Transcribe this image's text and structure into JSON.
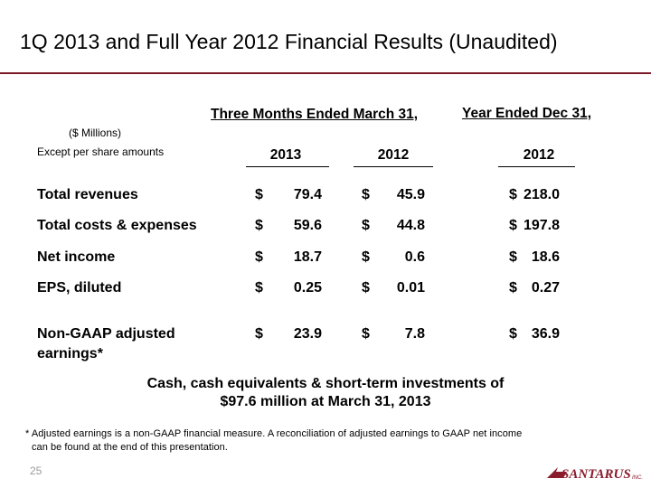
{
  "title": "1Q 2013 and Full Year 2012 Financial Results (Unaudited)",
  "header": {
    "three_months": "Three Months Ended March 31,",
    "year_ended": "Year Ended Dec 31,",
    "units": "($ Millions)",
    "except": "Except per share amounts",
    "years": [
      "2013",
      "2012",
      "2012"
    ]
  },
  "rows": [
    {
      "label": "Total revenues",
      "values": [
        "79.4",
        "45.9",
        "218.0"
      ]
    },
    {
      "label": "Total costs & expenses",
      "values": [
        "59.6",
        "44.8",
        "197.8"
      ]
    },
    {
      "label": "Net income",
      "values": [
        "18.7",
        "0.6",
        "18.6"
      ]
    },
    {
      "label": "EPS, diluted",
      "values": [
        "0.25",
        "0.01",
        "0.27"
      ]
    },
    {
      "label": "Non-GAAP adjusted earnings*",
      "values": [
        "23.9",
        "7.8",
        "36.9"
      ]
    }
  ],
  "currency_symbol": "$",
  "cash_note": {
    "line1": "Cash, cash equivalents & short-term investments of",
    "line2": "$97.6 million at March 31, 2013"
  },
  "footnote": {
    "line1": "* Adjusted earnings is a non-GAAP financial measure.  A reconciliation of adjusted earnings to GAAP net income",
    "line2": "can be found at the end of this presentation."
  },
  "page_number": "25",
  "logo_text": "SANTARUS",
  "logo_suffix": "INC.",
  "colors": {
    "rule": "#7a1a2a",
    "logo": "#8b1c2c",
    "page_number": "#9a9a9a"
  }
}
